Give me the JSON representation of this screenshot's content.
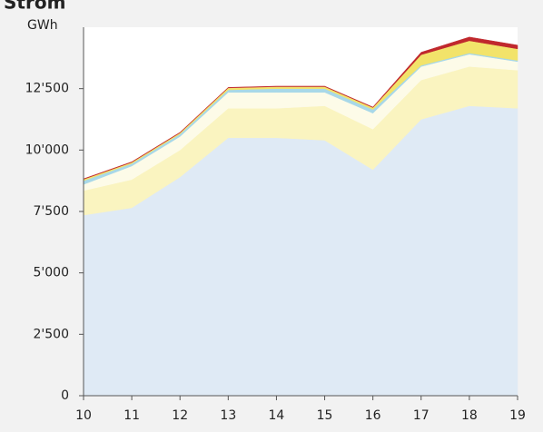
{
  "chart_data": {
    "type": "stacked_area",
    "title": "Strom",
    "y_label": "GWh",
    "categories": [
      "10",
      "11",
      "12",
      "13",
      "14",
      "15",
      "16",
      "17",
      "18",
      "19"
    ],
    "series": [
      {
        "color": "#dfeaf5",
        "values": [
          7350,
          7650,
          8900,
          10500,
          10500,
          10400,
          9200,
          11250,
          11800,
          11700
        ]
      },
      {
        "color": "#faf4c0",
        "values": [
          1000,
          1150,
          1100,
          1200,
          1200,
          1400,
          1650,
          1600,
          1600,
          1550
        ]
      },
      {
        "color": "#fdfbe8",
        "values": [
          250,
          550,
          550,
          650,
          650,
          550,
          650,
          550,
          500,
          350
        ]
      },
      {
        "color": "#a8d8e8",
        "values": [
          150,
          100,
          100,
          100,
          150,
          150,
          150,
          50,
          50,
          50
        ]
      },
      {
        "color": "#f2e36a",
        "values": [
          60,
          50,
          50,
          80,
          80,
          80,
          80,
          430,
          500,
          470
        ]
      },
      {
        "color": "#c0282d",
        "values": [
          20,
          20,
          20,
          20,
          20,
          20,
          20,
          100,
          150,
          150
        ]
      }
    ],
    "ylim": [
      0,
      15000
    ],
    "yticks": [
      0,
      {
        "value": 2500,
        "label": "2'500"
      },
      {
        "value": 5000,
        "label": "5'000"
      },
      {
        "value": 7500,
        "label": "7'500"
      },
      {
        "value": 10000,
        "label": "10'000"
      },
      {
        "value": 12500,
        "label": "12'500"
      }
    ]
  }
}
